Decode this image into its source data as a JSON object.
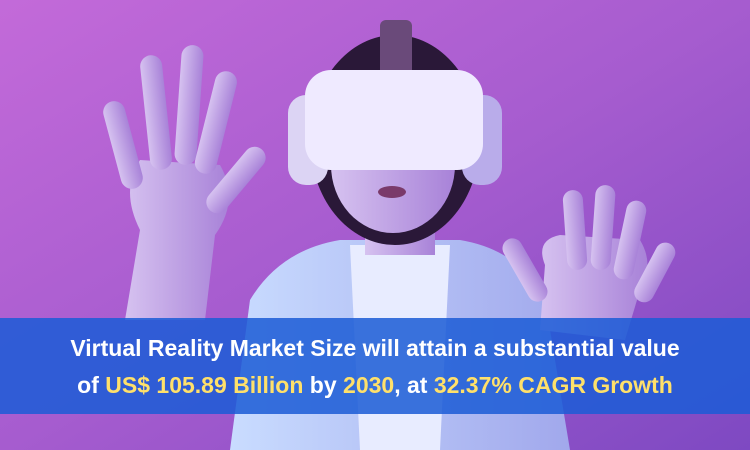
{
  "banner": {
    "line1": "Virtual Reality Market Size will attain a substantial value",
    "line2": [
      {
        "text": "of ",
        "highlight": false
      },
      {
        "text": "US$ 105.89 Billion",
        "highlight": true
      },
      {
        "text": " by ",
        "highlight": false
      },
      {
        "text": "2030",
        "highlight": true
      },
      {
        "text": ", at ",
        "highlight": false
      },
      {
        "text": "32.37% CAGR Growth",
        "highlight": true
      }
    ]
  }
}
